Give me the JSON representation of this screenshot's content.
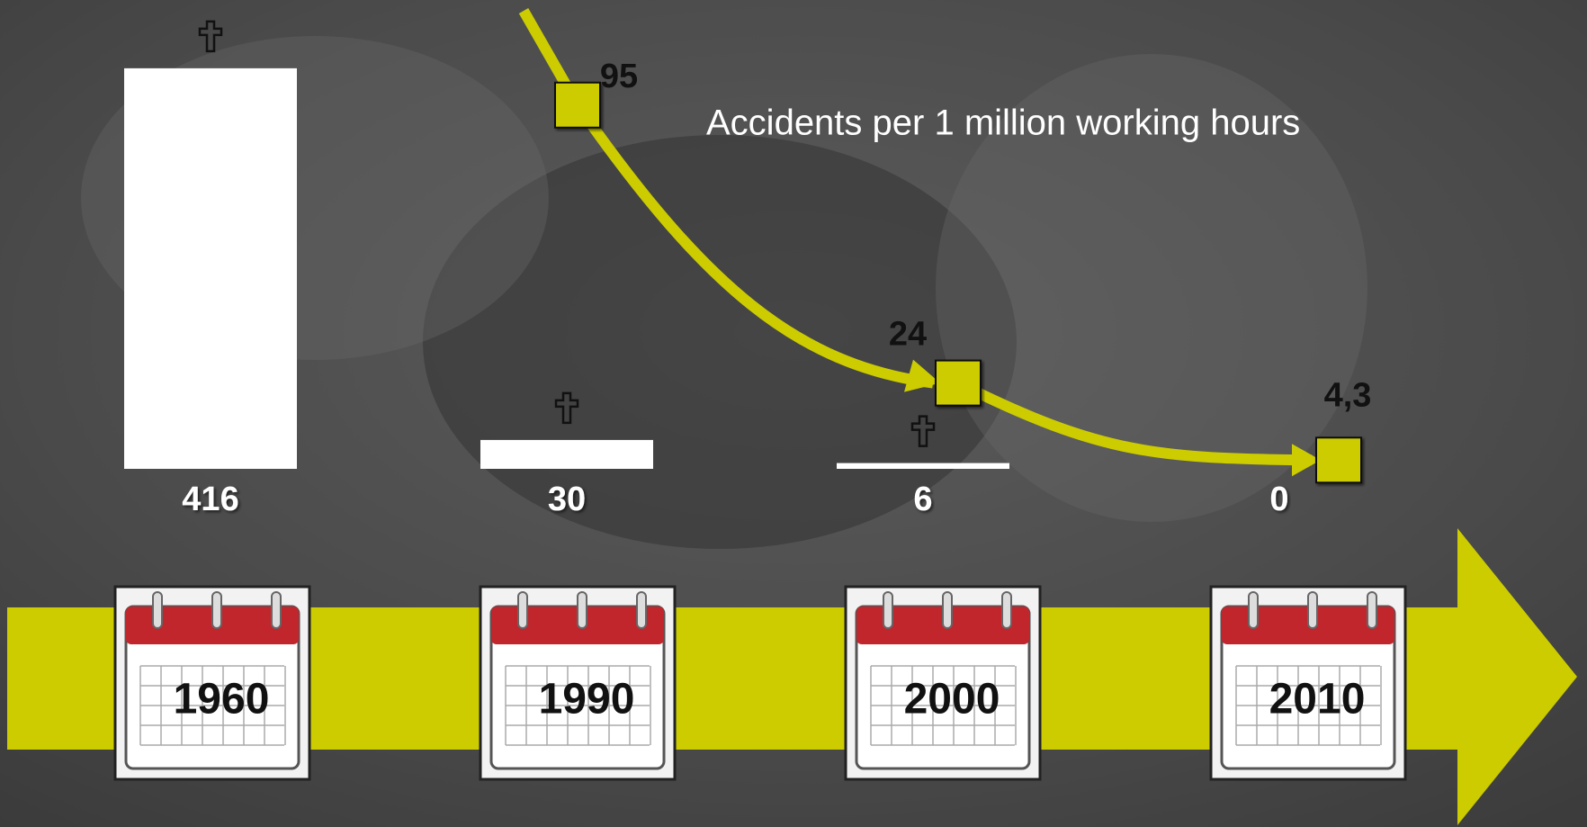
{
  "chart_data": [
    {
      "type": "bar",
      "categories": [
        "1960",
        "1990",
        "2000",
        "2010"
      ],
      "values": [
        416,
        30,
        6,
        0
      ],
      "color": "#ffffff"
    },
    {
      "type": "line",
      "title": "Accidents per 1 million working hours",
      "values": [
        null,
        95,
        24,
        4.3
      ],
      "value_labels": [
        null,
        "95",
        "24",
        "4,3"
      ],
      "color": "#cccc00"
    }
  ]
}
